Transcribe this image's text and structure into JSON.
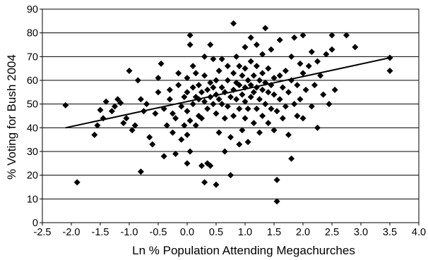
{
  "chart_data": {
    "type": "scatter",
    "title": "",
    "xlabel": "Ln % Population Attending Megachurches",
    "ylabel": "% Voting for Bush 2004",
    "xlim": [
      -2.5,
      4.0
    ],
    "ylim": [
      0,
      90
    ],
    "xticks": [
      "-2.5",
      "-2.0",
      "-1.5",
      "-1.0",
      "-0.5",
      "0.0",
      "0.5",
      "1.0",
      "1.5",
      "2.0",
      "2.5",
      "3.0",
      "3.5",
      "4.0"
    ],
    "yticks": [
      "0",
      "10",
      "20",
      "30",
      "40",
      "50",
      "60",
      "70",
      "80",
      "90"
    ],
    "grid": "horizontal",
    "legend": "none",
    "marker": "diamond",
    "marker_color": "#000000",
    "trendline": {
      "type": "linear",
      "x": [
        -2.1,
        3.5
      ],
      "y": [
        40,
        69.5
      ]
    },
    "series": [
      {
        "points": [
          [
            -2.1,
            49.5
          ],
          [
            -1.9,
            17
          ],
          [
            -1.6,
            37
          ],
          [
            -1.55,
            41
          ],
          [
            -1.5,
            47.5
          ],
          [
            -1.45,
            44
          ],
          [
            -1.4,
            51
          ],
          [
            -1.3,
            47
          ],
          [
            -1.25,
            49
          ],
          [
            -1.2,
            52
          ],
          [
            -1.15,
            50.5
          ],
          [
            -1.1,
            42
          ],
          [
            -1.05,
            44
          ],
          [
            -1.0,
            64
          ],
          [
            -0.95,
            39
          ],
          [
            -0.9,
            41
          ],
          [
            -0.85,
            60
          ],
          [
            -0.8,
            52
          ],
          [
            -0.8,
            21.5
          ],
          [
            -0.75,
            47
          ],
          [
            -0.7,
            50
          ],
          [
            -0.65,
            36
          ],
          [
            -0.6,
            33
          ],
          [
            -0.55,
            46
          ],
          [
            -0.5,
            55
          ],
          [
            -0.5,
            61
          ],
          [
            -0.45,
            67
          ],
          [
            -0.4,
            48
          ],
          [
            -0.4,
            28
          ],
          [
            -0.35,
            41
          ],
          [
            -0.3,
            52
          ],
          [
            -0.3,
            56
          ],
          [
            -0.25,
            46
          ],
          [
            -0.25,
            38
          ],
          [
            -0.2,
            29
          ],
          [
            -0.2,
            44
          ],
          [
            -0.15,
            58
          ],
          [
            -0.15,
            63
          ],
          [
            -0.1,
            49
          ],
          [
            -0.1,
            35
          ],
          [
            -0.05,
            53
          ],
          [
            -0.05,
            41
          ],
          [
            0.0,
            25
          ],
          [
            0.0,
            37
          ],
          [
            0.0,
            47
          ],
          [
            0.0,
            55
          ],
          [
            0.0,
            61
          ],
          [
            0.05,
            30
          ],
          [
            0.05,
            43
          ],
          [
            0.05,
            75
          ],
          [
            0.05,
            79
          ],
          [
            0.1,
            50
          ],
          [
            0.1,
            57
          ],
          [
            0.1,
            66
          ],
          [
            0.15,
            41
          ],
          [
            0.15,
            53
          ],
          [
            0.15,
            63
          ],
          [
            0.2,
            45
          ],
          [
            0.2,
            52
          ],
          [
            0.2,
            58
          ],
          [
            0.25,
            44
          ],
          [
            0.25,
            55
          ],
          [
            0.25,
            24
          ],
          [
            0.3,
            51
          ],
          [
            0.3,
            62
          ],
          [
            0.3,
            70
          ],
          [
            0.3,
            17
          ],
          [
            0.35,
            48
          ],
          [
            0.35,
            56
          ],
          [
            0.35,
            25
          ],
          [
            0.4,
            53
          ],
          [
            0.4,
            59
          ],
          [
            0.4,
            75
          ],
          [
            0.4,
            24
          ],
          [
            0.45,
            50
          ],
          [
            0.45,
            57
          ],
          [
            0.45,
            69
          ],
          [
            0.5,
            46
          ],
          [
            0.5,
            54
          ],
          [
            0.5,
            16
          ],
          [
            0.5,
            60
          ],
          [
            0.55,
            38
          ],
          [
            0.55,
            52
          ],
          [
            0.55,
            64
          ],
          [
            0.6,
            50
          ],
          [
            0.6,
            57
          ],
          [
            0.6,
            69
          ],
          [
            0.65,
            30
          ],
          [
            0.65,
            44
          ],
          [
            0.65,
            55
          ],
          [
            0.7,
            49
          ],
          [
            0.7,
            60
          ],
          [
            0.7,
            66
          ],
          [
            0.75,
            36
          ],
          [
            0.75,
            53
          ],
          [
            0.75,
            20
          ],
          [
            0.8,
            45
          ],
          [
            0.8,
            56
          ],
          [
            0.8,
            63
          ],
          [
            0.8,
            84
          ],
          [
            0.85,
            52
          ],
          [
            0.85,
            59
          ],
          [
            0.85,
            70
          ],
          [
            0.9,
            33
          ],
          [
            0.9,
            48
          ],
          [
            0.9,
            58
          ],
          [
            0.9,
            66
          ],
          [
            0.95,
            39
          ],
          [
            0.95,
            54
          ],
          [
            0.95,
            62
          ],
          [
            1.0,
            44
          ],
          [
            1.0,
            51
          ],
          [
            1.0,
            57
          ],
          [
            1.0,
            65
          ],
          [
            1.0,
            74
          ],
          [
            1.05,
            34
          ],
          [
            1.05,
            48
          ],
          [
            1.05,
            60
          ],
          [
            1.1,
            53
          ],
          [
            1.1,
            58
          ],
          [
            1.1,
            68
          ],
          [
            1.1,
            78
          ],
          [
            1.15,
            42
          ],
          [
            1.15,
            55
          ],
          [
            1.15,
            62
          ],
          [
            1.2,
            48
          ],
          [
            1.2,
            57
          ],
          [
            1.2,
            66
          ],
          [
            1.2,
            75
          ],
          [
            1.25,
            38
          ],
          [
            1.25,
            52
          ],
          [
            1.25,
            60
          ],
          [
            1.3,
            45
          ],
          [
            1.3,
            56
          ],
          [
            1.3,
            63
          ],
          [
            1.3,
            71
          ],
          [
            1.35,
            50
          ],
          [
            1.35,
            59
          ],
          [
            1.35,
            82
          ],
          [
            1.4,
            42
          ],
          [
            1.4,
            55
          ],
          [
            1.4,
            65
          ],
          [
            1.45,
            48
          ],
          [
            1.45,
            58
          ],
          [
            1.45,
            73
          ],
          [
            1.5,
            39
          ],
          [
            1.5,
            54
          ],
          [
            1.5,
            61
          ],
          [
            1.55,
            47
          ],
          [
            1.55,
            9
          ],
          [
            1.55,
            18
          ],
          [
            1.6,
            52
          ],
          [
            1.6,
            62
          ],
          [
            1.6,
            77
          ],
          [
            1.65,
            44
          ],
          [
            1.65,
            57
          ],
          [
            1.7,
            49
          ],
          [
            1.7,
            64
          ],
          [
            1.75,
            37
          ],
          [
            1.75,
            55
          ],
          [
            1.8,
            27
          ],
          [
            1.8,
            60
          ],
          [
            1.8,
            70
          ],
          [
            1.85,
            50
          ],
          [
            1.85,
            78
          ],
          [
            1.9,
            45
          ],
          [
            1.9,
            58
          ],
          [
            1.95,
            52
          ],
          [
            1.95,
            67
          ],
          [
            2.0,
            44
          ],
          [
            2.0,
            63
          ],
          [
            2.0,
            79
          ],
          [
            2.05,
            56
          ],
          [
            2.1,
            66
          ],
          [
            2.15,
            49
          ],
          [
            2.15,
            72
          ],
          [
            2.2,
            58
          ],
          [
            2.25,
            40
          ],
          [
            2.25,
            68
          ],
          [
            2.3,
            62
          ],
          [
            2.35,
            54
          ],
          [
            2.4,
            71
          ],
          [
            2.45,
            50
          ],
          [
            2.5,
            73
          ],
          [
            2.5,
            79
          ],
          [
            2.55,
            56
          ],
          [
            2.75,
            79
          ],
          [
            2.9,
            74
          ],
          [
            3.5,
            69.5
          ],
          [
            3.5,
            64
          ]
        ]
      }
    ]
  }
}
